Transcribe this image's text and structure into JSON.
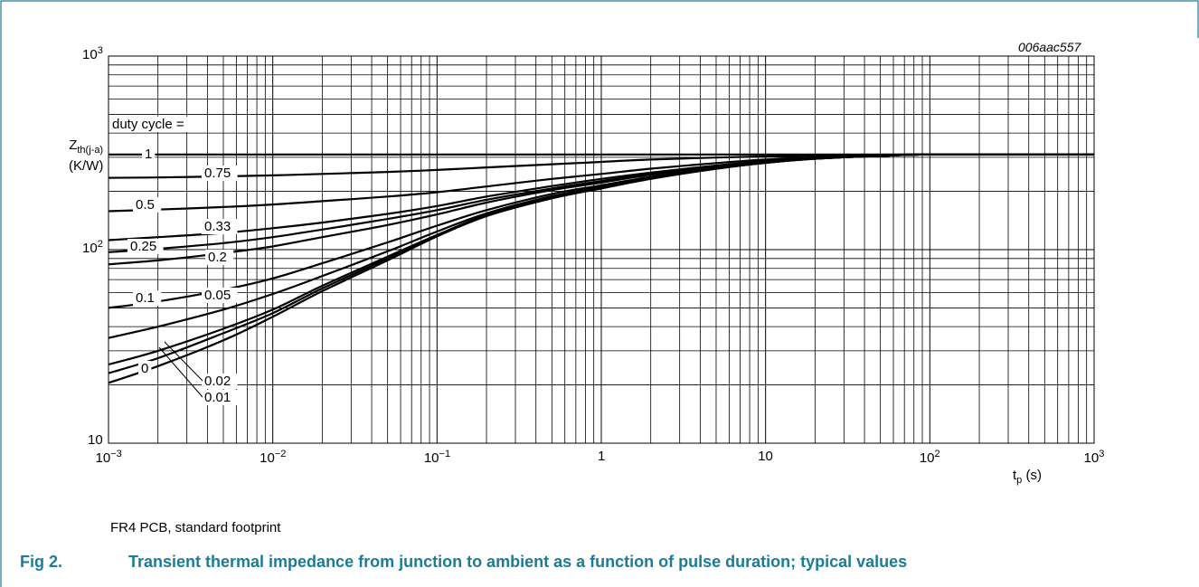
{
  "figure": {
    "code": "006aac557",
    "note": "FR4 PCB, standard footprint",
    "caption_number": "Fig 2.",
    "caption_text": "Transient thermal impedance from junction to ambient as a function of pulse duration; typical values"
  },
  "chart_data": {
    "type": "line",
    "xscale": "log",
    "yscale": "log",
    "xlim": [
      0.001,
      1000
    ],
    "ylim": [
      10,
      1000
    ],
    "grid": true,
    "ylabel": {
      "main": "Z",
      "sub": "th(j-a)",
      "unit": "(K/W)"
    },
    "xlabel": {
      "main": "t",
      "sub": "p",
      "unit": "(s)"
    },
    "xticks": [
      {
        "base": "10",
        "exp": "−3"
      },
      {
        "base": "10",
        "exp": "−2"
      },
      {
        "base": "10",
        "exp": "−1"
      },
      {
        "base": "1",
        "exp": ""
      },
      {
        "base": "10",
        "exp": ""
      },
      {
        "base": "10",
        "exp": "2"
      },
      {
        "base": "10",
        "exp": "3"
      }
    ],
    "yticks": [
      {
        "base": "10",
        "exp": ""
      },
      {
        "base": "10",
        "exp": "2"
      },
      {
        "base": "10",
        "exp": "3"
      }
    ],
    "legend_title": "duty cycle =",
    "x": [
      0.001,
      0.002,
      0.005,
      0.01,
      0.02,
      0.05,
      0.1,
      0.2,
      0.5,
      1,
      2,
      5,
      10,
      20,
      50,
      100,
      1000
    ],
    "series": [
      {
        "name": "1",
        "values": [
          310,
          310,
          310,
          310,
          310,
          310,
          310,
          310,
          310,
          310,
          310,
          310,
          310,
          310,
          310,
          310,
          310
        ]
      },
      {
        "name": "0.75",
        "values": [
          235,
          236,
          239,
          242,
          246,
          252,
          258,
          266,
          276,
          284,
          292,
          299,
          303,
          306,
          309,
          310,
          310
        ]
      },
      {
        "name": "0.5",
        "values": [
          158,
          161,
          166,
          171,
          178,
          188,
          198,
          212,
          232,
          246,
          262,
          280,
          292,
          300,
          307,
          310,
          310
        ]
      },
      {
        "name": "0.33",
        "values": [
          112,
          116,
          122,
          129,
          138,
          153,
          168,
          188,
          213,
          232,
          250,
          272,
          287,
          298,
          306,
          310,
          310
        ]
      },
      {
        "name": "0.25",
        "values": [
          97,
          101,
          108,
          116,
          127,
          144,
          160,
          181,
          207,
          226,
          246,
          270,
          286,
          297,
          306,
          310,
          310
        ]
      },
      {
        "name": "0.2",
        "values": [
          84,
          88,
          96,
          104,
          116,
          134,
          152,
          175,
          203,
          222,
          244,
          268,
          285,
          297,
          306,
          310,
          310
        ]
      },
      {
        "name": "0.1",
        "values": [
          50,
          54,
          62,
          71,
          85,
          109,
          133,
          160,
          194,
          215,
          238,
          265,
          283,
          296,
          305,
          310,
          310
        ]
      },
      {
        "name": "0.05",
        "values": [
          35,
          40,
          49,
          59,
          73,
          98,
          124,
          154,
          189,
          211,
          235,
          263,
          282,
          296,
          305,
          310,
          310
        ]
      },
      {
        "name": "0.02",
        "values": [
          25.5,
          30,
          39,
          49,
          65,
          92,
          119,
          151,
          186,
          209,
          233,
          262,
          281,
          295,
          305,
          310,
          310
        ]
      },
      {
        "name": "0.01",
        "values": [
          23,
          27.5,
          37,
          47,
          63,
          90,
          118,
          150,
          185,
          208,
          233,
          262,
          281,
          295,
          305,
          310,
          310
        ]
      },
      {
        "name": "0",
        "values": [
          20.5,
          25,
          34,
          45,
          61,
          88,
          117,
          149,
          184,
          207,
          232,
          262,
          281,
          295,
          305,
          310,
          310
        ]
      }
    ]
  }
}
